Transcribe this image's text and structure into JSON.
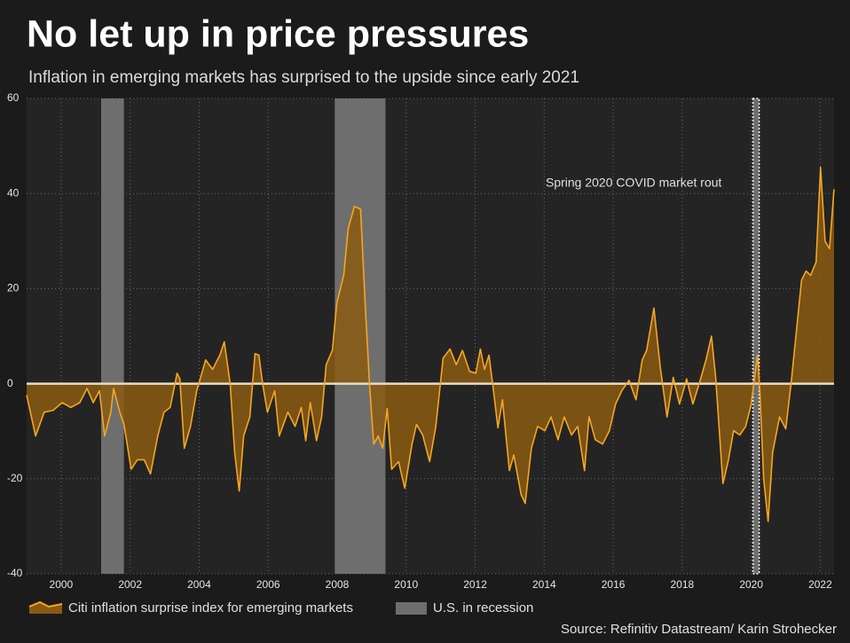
{
  "chart_data": {
    "type": "area",
    "title": "No let up in price pressures",
    "subtitle": "Inflation in emerging markets has surprised to the upside since early 2021",
    "source": "Source: Refinitiv Datastream/ Karin Strohecker",
    "annotation": "Spring 2020 COVID market rout",
    "xlim": [
      1999,
      2022.4
    ],
    "xticks": [
      2000,
      2002,
      2004,
      2006,
      2008,
      2010,
      2012,
      2014,
      2016,
      2018,
      2020,
      2022
    ],
    "ylim": [
      -40,
      60
    ],
    "yticks": [
      -40,
      -20,
      0,
      20,
      40,
      60
    ],
    "grid": true,
    "recession_name": "U.S. in recession",
    "recession_color": "#6e6e6e",
    "recessions": [
      {
        "start": 2001.16,
        "end": 2001.82
      },
      {
        "start": 2007.93,
        "end": 2009.4
      },
      {
        "start": 2020.05,
        "end": 2020.23
      }
    ],
    "series": [
      {
        "name": "Citi inflation surprise index for emerging markets",
        "color": "#f5a623",
        "fill": "#8a5a12",
        "x": [
          1999.0,
          1999.26,
          1999.51,
          1999.77,
          2000.03,
          2000.28,
          2000.54,
          2000.75,
          2000.93,
          2001.11,
          2001.26,
          2001.44,
          2001.52,
          2001.7,
          2001.82,
          2002.03,
          2002.21,
          2002.41,
          2002.59,
          2002.8,
          2002.98,
          2003.16,
          2003.36,
          2003.44,
          2003.57,
          2003.75,
          2003.93,
          2004.19,
          2004.39,
          2004.6,
          2004.73,
          2004.9,
          2005.03,
          2005.16,
          2005.29,
          2005.47,
          2005.62,
          2005.73,
          2005.85,
          2005.98,
          2006.19,
          2006.32,
          2006.57,
          2006.78,
          2006.96,
          2007.09,
          2007.22,
          2007.4,
          2007.55,
          2007.68,
          2007.86,
          2007.99,
          2008.19,
          2008.32,
          2008.5,
          2008.68,
          2008.81,
          2008.94,
          2009.06,
          2009.19,
          2009.32,
          2009.45,
          2009.58,
          2009.78,
          2009.96,
          2010.17,
          2010.3,
          2010.48,
          2010.68,
          2010.86,
          2011.07,
          2011.27,
          2011.45,
          2011.63,
          2011.84,
          2012.02,
          2012.15,
          2012.27,
          2012.4,
          2012.53,
          2012.66,
          2012.79,
          2012.99,
          2013.12,
          2013.33,
          2013.45,
          2013.63,
          2013.81,
          2014.02,
          2014.2,
          2014.4,
          2014.58,
          2014.79,
          2014.97,
          2015.17,
          2015.3,
          2015.48,
          2015.69,
          2015.89,
          2016.07,
          2016.25,
          2016.46,
          2016.66,
          2016.84,
          2016.97,
          2017.18,
          2017.36,
          2017.56,
          2017.74,
          2017.92,
          2018.13,
          2018.31,
          2018.51,
          2018.69,
          2018.85,
          2018.97,
          2019.18,
          2019.33,
          2019.49,
          2019.67,
          2019.84,
          2020.0,
          2020.18,
          2020.25,
          2020.36,
          2020.49,
          2020.62,
          2020.82,
          2021.0,
          2021.16,
          2021.28,
          2021.46,
          2021.59,
          2021.72,
          2021.88,
          2022.01,
          2022.14,
          2022.27,
          2022.4
        ],
        "values": [
          -2.4,
          -11,
          -6,
          -5.6,
          -4,
          -5,
          -4,
          -1,
          -4,
          -1.5,
          -11,
          -6,
          -1,
          -6,
          -8.5,
          -18,
          -16,
          -16,
          -19,
          -11,
          -6,
          -5,
          2.2,
          1,
          -13.6,
          -9,
          -1.5,
          5,
          3,
          6,
          8.8,
          0,
          -14.5,
          -22.6,
          -11,
          -7,
          6.3,
          6,
          -0.5,
          -6,
          -1.5,
          -11,
          -6,
          -9,
          -5,
          -12,
          -4,
          -12,
          -7,
          4,
          7,
          17,
          22.8,
          32.6,
          37.3,
          36.7,
          17,
          -0.5,
          -12.7,
          -11,
          -13.6,
          -5.2,
          -18,
          -16.4,
          -22,
          -12.7,
          -8.6,
          -10.8,
          -16.4,
          -9,
          5.4,
          7.3,
          4,
          7,
          2.6,
          2.2,
          7.3,
          3,
          6,
          -1.5,
          -9.3,
          -3.4,
          -18.3,
          -15,
          -23.3,
          -25.2,
          -13.6,
          -9,
          -9.9,
          -7,
          -11.8,
          -7,
          -10.8,
          -9,
          -18.3,
          -7,
          -11.8,
          -12.7,
          -9.9,
          -4.3,
          -1.5,
          0.7,
          -3.4,
          5,
          7,
          15.9,
          3.7,
          -7,
          1.3,
          -4.3,
          1,
          -4.3,
          0.4,
          5,
          10,
          1.3,
          -21,
          -16.4,
          -9.9,
          -10.8,
          -9,
          -4.3,
          6,
          -1.5,
          -20,
          -29,
          -14.5,
          -7,
          -9.5,
          0.4,
          8.8,
          21.8,
          23.7,
          22.8,
          25.6,
          45.5,
          30,
          28.4,
          40.9
        ]
      }
    ]
  }
}
